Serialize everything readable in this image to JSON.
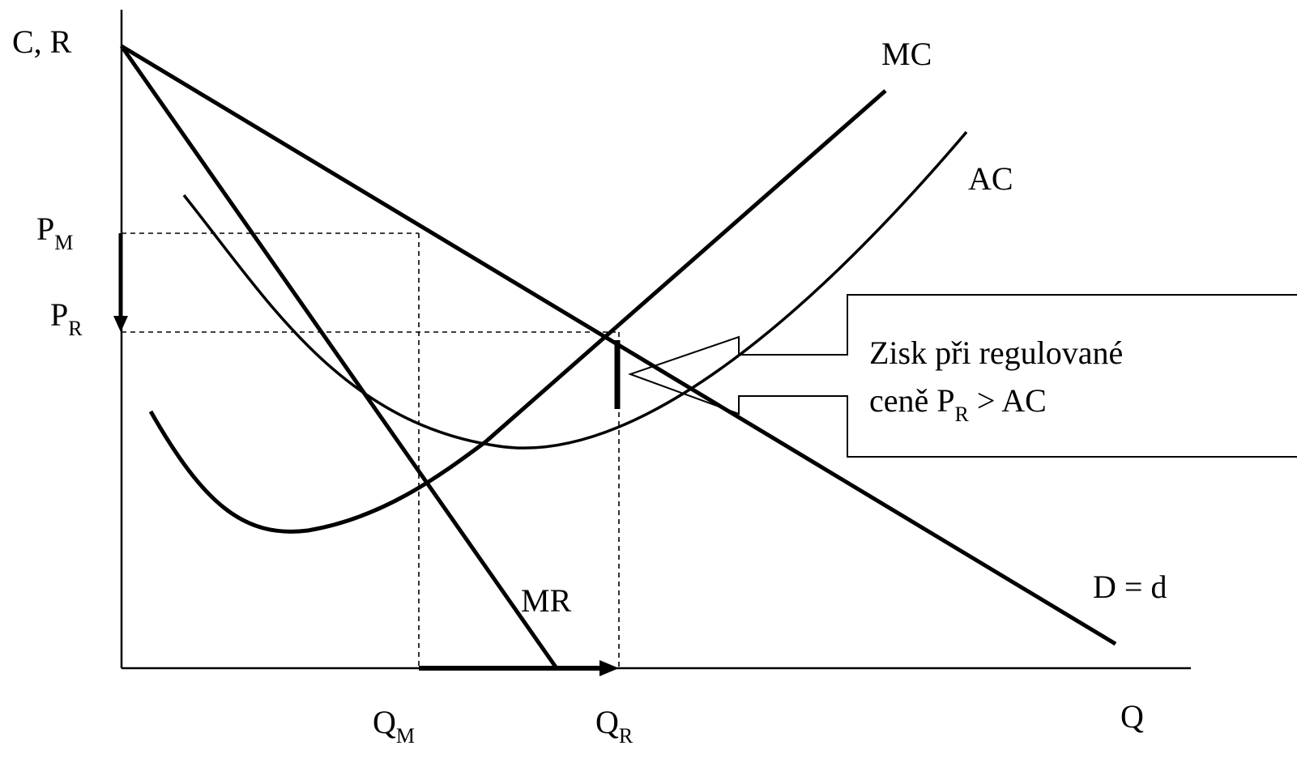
{
  "axes": {
    "y_label": "C, R",
    "x_label": "Q"
  },
  "curves": {
    "mc": "MC",
    "ac": "AC",
    "mr": "MR",
    "demand": "D = d"
  },
  "prices": {
    "pm_main": "P",
    "pm_sub": "M",
    "pr_main": "P",
    "pr_sub": "R"
  },
  "quantities": {
    "qm_main": "Q",
    "qm_sub": "M",
    "qr_main": "Q",
    "qr_sub": "R"
  },
  "callout": {
    "line1": "Zisk při regulované",
    "line2_pre": "ceně P",
    "line2_sub": "R",
    "line2_post": " > AC"
  }
}
